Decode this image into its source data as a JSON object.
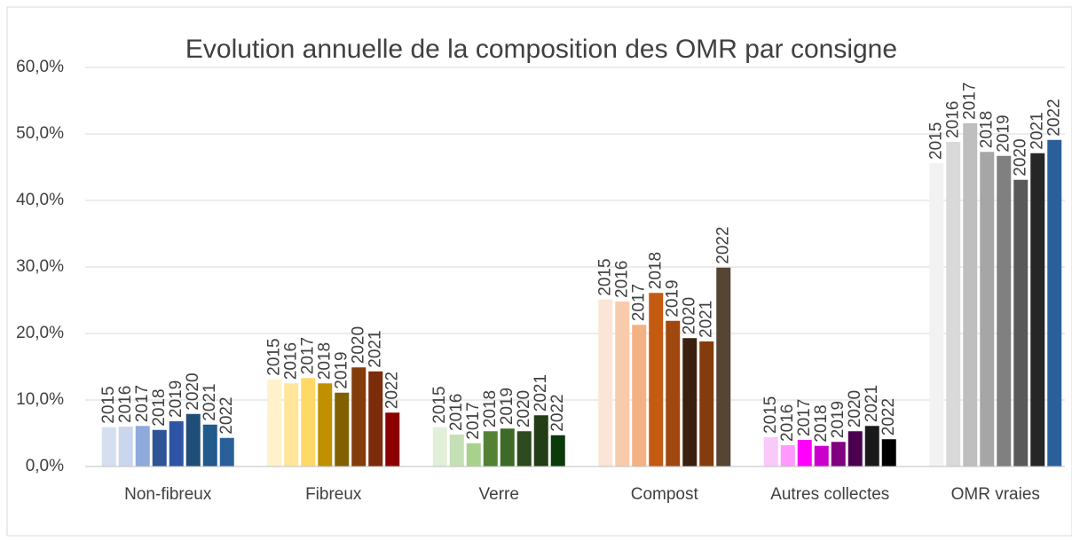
{
  "chart_data": {
    "type": "bar",
    "title": "Evolution annuelle de la composition des OMR par consigne",
    "categories": [
      "Non-fibreux",
      "Fibreux",
      "Verre",
      "Compost",
      "Autres collectes",
      "OMR vraies"
    ],
    "series": [
      {
        "name": "2015",
        "colors": [
          "#d6dff0",
          "#fff2cc",
          "#e2efd9",
          "#fbe5d6",
          "#f9c9f9",
          "#f2f2f2"
        ],
        "values": [
          5.9,
          13.1,
          5.9,
          25.1,
          4.4,
          45.6
        ]
      },
      {
        "name": "2016",
        "colors": [
          "#c9d6ee",
          "#ffe699",
          "#c5e0b4",
          "#f8cbad",
          "#ff99ff",
          "#d9d9d9"
        ],
        "values": [
          6.0,
          12.5,
          4.8,
          24.8,
          3.2,
          48.8
        ]
      },
      {
        "name": "2017",
        "colors": [
          "#8faadc",
          "#ffd966",
          "#a9d18e",
          "#f4b183",
          "#ff00ff",
          "#bfbfbf"
        ],
        "values": [
          6.1,
          13.3,
          3.5,
          21.3,
          4.0,
          51.6
        ]
      },
      {
        "name": "2018",
        "colors": [
          "#2f5496",
          "#c09000",
          "#548235",
          "#c55a11",
          "#cc00cc",
          "#a6a6a6"
        ],
        "values": [
          5.5,
          12.5,
          5.3,
          26.1,
          3.1,
          47.3
        ]
      },
      {
        "name": "2019",
        "colors": [
          "#2e55a5",
          "#806000",
          "#3d6b27",
          "#a0480e",
          "#800080",
          "#808080"
        ],
        "values": [
          6.8,
          11.1,
          5.7,
          21.9,
          3.7,
          46.7
        ]
      },
      {
        "name": "2020",
        "colors": [
          "#1f4e79",
          "#843c0c",
          "#2e4a1e",
          "#3b200d",
          "#4b0050",
          "#595959"
        ],
        "values": [
          7.9,
          14.9,
          5.3,
          19.3,
          5.3,
          43.1
        ]
      },
      {
        "name": "2021",
        "colors": [
          "#215a8c",
          "#7b2c0a",
          "#233d17",
          "#843c0c",
          "#1a1a1a",
          "#262626"
        ],
        "values": [
          6.3,
          14.3,
          7.7,
          18.8,
          6.1,
          47.1
        ]
      },
      {
        "name": "2022",
        "colors": [
          "#2a6099",
          "#8b0000",
          "#0b3b0b",
          "#564434",
          "#000000",
          "#2a6099"
        ],
        "values": [
          4.3,
          8.1,
          4.7,
          29.9,
          4.1,
          49.1
        ]
      }
    ],
    "ylim": [
      0,
      60
    ],
    "yticks": [
      {
        "value": 0,
        "label": "0,0%"
      },
      {
        "value": 10,
        "label": "10,0%"
      },
      {
        "value": 20,
        "label": "20,0%"
      },
      {
        "value": 30,
        "label": "30,0%"
      },
      {
        "value": 40,
        "label": "40,0%"
      },
      {
        "value": 50,
        "label": "50,0%"
      },
      {
        "value": 60,
        "label": "60,0%"
      }
    ],
    "grid": true
  }
}
